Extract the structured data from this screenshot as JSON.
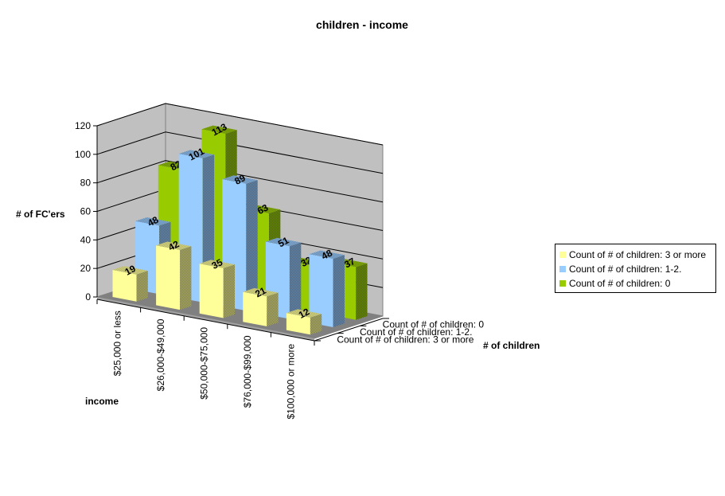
{
  "chart_data": {
    "type": "bar",
    "subtype": "3d-column",
    "title": "children - income",
    "xlabel": "income",
    "ylabel": "# of FC'ers",
    "zlabel": "# of children",
    "ylim": [
      0,
      120
    ],
    "yticks": [
      0,
      20,
      40,
      60,
      80,
      100,
      120
    ],
    "grid": true,
    "legend_position": "right",
    "categories": [
      "$25,000 or less",
      "$26,000-$49,000",
      "$50,000-$75,000",
      "$76,000-$99,000",
      "$100,000 or more"
    ],
    "series": [
      {
        "name": "Count of # of children: 3 or more",
        "color": "#FFFF99",
        "values": [
          19,
          42,
          35,
          21,
          12
        ]
      },
      {
        "name": "Count of # of children: 1-2.",
        "color": "#99CCFF",
        "values": [
          48,
          101,
          89,
          51,
          48
        ]
      },
      {
        "name": "Count of # of children: 0",
        "color": "#99CC00",
        "values": [
          82,
          113,
          63,
          32,
          37
        ]
      }
    ],
    "depth_labels": [
      "Count of # of children: 0",
      "Count of # of children: 1-2.",
      "Count of # of children: 3 or more"
    ]
  },
  "legend": {
    "items": [
      {
        "label": "Count of # of children: 3 or more",
        "color": "#FFFF99"
      },
      {
        "label": "Count of # of children: 1-2.",
        "color": "#99CCFF"
      },
      {
        "label": "Count of # of children: 0",
        "color": "#99CC00"
      }
    ]
  }
}
